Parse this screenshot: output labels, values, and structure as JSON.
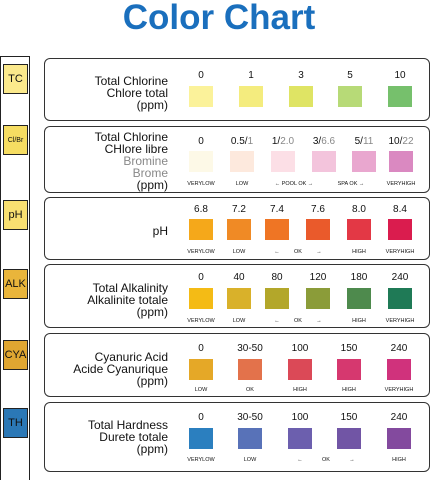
{
  "title": "Color Chart",
  "rows": [
    {
      "tag": "TC",
      "tag_color": "#fbe98c",
      "label_lines": [
        "Total Chlorine",
        "Chlore total",
        "(ppm)"
      ],
      "values": [
        "0",
        "1",
        "3",
        "5",
        "10"
      ],
      "colors": [
        "#fbf29a",
        "#f4ec7e",
        "#dfe464",
        "#b7da77",
        "#76c06c"
      ],
      "notes": []
    },
    {
      "tag": "Cl/Br",
      "tag_color": "#f6dd62",
      "label_lines": [
        "Total Chlorine",
        "CHlore libre",
        "Bromine",
        "Brome",
        "(ppm)"
      ],
      "values": [
        {
          "a": "0",
          "b": ""
        },
        {
          "a": "0.5/",
          "b": "1"
        },
        {
          "a": "1/",
          "b": "2.0"
        },
        {
          "a": "3/",
          "b": "6.6"
        },
        {
          "a": "5/",
          "b": "11"
        },
        {
          "a": "10/",
          "b": "22"
        }
      ],
      "colors": [
        "#fdf9e7",
        "#fde9dd",
        "#fcdfe6",
        "#f3c4dc",
        "#e9a7cf",
        "#da89c1"
      ],
      "notes": [
        "VERYLOW",
        "LOW",
        "← POOL OK →",
        "SPA OK →",
        "VERYHIGH"
      ]
    },
    {
      "tag": "pH",
      "tag_color": "#f8df71",
      "label_lines": [
        "pH"
      ],
      "values": [
        "6.8",
        "7.2",
        "7.4",
        "7.6",
        "8.0",
        "8.4"
      ],
      "colors": [
        "#f5a81a",
        "#f08a25",
        "#ef7524",
        "#ea5a2b",
        "#e33845",
        "#da1c4e"
      ],
      "notes": [
        "VERYLOW",
        "LOW",
        "←",
        "OK",
        "→",
        "HIGH",
        "VERYHIGH"
      ]
    },
    {
      "tag": "ALK",
      "tag_color": "#e9b53b",
      "label_lines": [
        "Total Alkalinity",
        "Alkalinite totale",
        "(ppm)"
      ],
      "values": [
        "0",
        "40",
        "80",
        "120",
        "180",
        "240"
      ],
      "colors": [
        "#f4bb15",
        "#d9b12a",
        "#b3a72a",
        "#8b9c39",
        "#4e8a4d",
        "#1f7a56"
      ],
      "notes": [
        "VERYLOW",
        "LOW",
        "←",
        "OK",
        "→",
        "HIGH",
        "VERYHIGH"
      ]
    },
    {
      "tag": "CYA",
      "tag_color": "#dfa631",
      "label_lines": [
        "Cyanuric Acid",
        "Acide Cyanurique",
        "(ppm)"
      ],
      "values": [
        "0",
        "30-50",
        "100",
        "150",
        "240"
      ],
      "colors": [
        "#e5a827",
        "#e3724b",
        "#db4957",
        "#d6386f",
        "#d0327c"
      ],
      "notes": [
        "LOW",
        "OK",
        "HIGH",
        "HIGH",
        "VERYHIGH"
      ]
    },
    {
      "tag": "TH",
      "tag_color": "#2b78b6",
      "label_lines": [
        "Total Hardness",
        "Durete totale",
        "(ppm)"
      ],
      "values": [
        "0",
        "30-50",
        "100",
        "150",
        "240"
      ],
      "colors": [
        "#2b7fbf",
        "#5872b8",
        "#6c5fae",
        "#7155a5",
        "#834a9e"
      ],
      "notes": [
        "VERYLOW",
        "LOW",
        "←",
        "OK",
        "→",
        "HIGH"
      ]
    }
  ]
}
